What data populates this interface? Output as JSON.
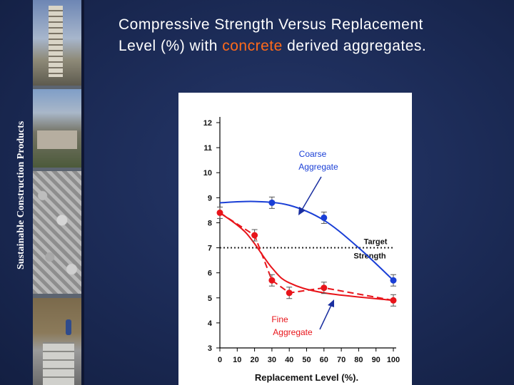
{
  "slide": {
    "side_label": "Sustainable Construction Products",
    "title_part1": "Compressive Strength Versus Replacement",
    "title_part2": "Level (%) with ",
    "title_highlight": "concrete",
    "title_part3": " derived aggregates.",
    "highlight_color": "#ff6a1a"
  },
  "chart_data": {
    "type": "line",
    "title": "",
    "xlabel": "Replacement Level (%).",
    "ylabel": "",
    "xlim": [
      0,
      100
    ],
    "ylim": [
      3,
      12
    ],
    "x_ticks": [
      0,
      10,
      20,
      30,
      40,
      50,
      60,
      70,
      80,
      90,
      100
    ],
    "y_ticks": [
      3,
      4,
      5,
      6,
      7,
      8,
      9,
      10,
      11,
      12
    ],
    "series": [
      {
        "name": "Coarse Aggregate",
        "color": "#1a3fd6",
        "points": [
          {
            "x": 30,
            "y": 8.8
          },
          {
            "x": 60,
            "y": 8.2
          },
          {
            "x": 100,
            "y": 5.7
          }
        ],
        "fit": [
          {
            "x": 0,
            "y": 8.8
          },
          {
            "x": 20,
            "y": 8.85
          },
          {
            "x": 40,
            "y": 8.7
          },
          {
            "x": 60,
            "y": 8.1
          },
          {
            "x": 80,
            "y": 7.0
          },
          {
            "x": 100,
            "y": 5.7
          }
        ]
      },
      {
        "name": "Fine Aggregate",
        "color": "#e8141a",
        "points": [
          {
            "x": 0,
            "y": 8.4
          },
          {
            "x": 20,
            "y": 7.5
          },
          {
            "x": 30,
            "y": 5.7
          },
          {
            "x": 40,
            "y": 5.2
          },
          {
            "x": 60,
            "y": 5.4
          },
          {
            "x": 100,
            "y": 4.9
          }
        ],
        "fit": [
          {
            "x": 0,
            "y": 8.4
          },
          {
            "x": 15,
            "y": 7.6
          },
          {
            "x": 30,
            "y": 6.2
          },
          {
            "x": 40,
            "y": 5.6
          },
          {
            "x": 60,
            "y": 5.2
          },
          {
            "x": 100,
            "y": 4.9
          }
        ]
      }
    ],
    "reference_line": {
      "y": 7,
      "label_line1": "Target",
      "label_line2": "Strength"
    },
    "annotations": [
      {
        "text_line1": "Coarse",
        "text_line2": "Aggregate",
        "color": "#1a3fd6"
      },
      {
        "text_line1": "Fine",
        "text_line2": "Aggregate",
        "color": "#e8141a"
      }
    ],
    "legend": "none",
    "grid": false
  }
}
